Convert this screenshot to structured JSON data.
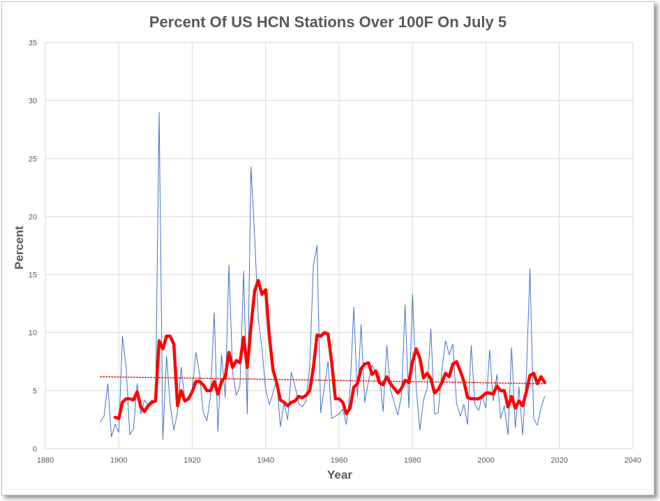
{
  "chart_data": {
    "type": "line",
    "title": "Percent Of US HCN Stations Over 100F On July 5",
    "xlabel": "Year",
    "ylabel": "Percent",
    "xlim": [
      1880,
      2040
    ],
    "ylim": [
      0,
      35
    ],
    "xticks": [
      1880,
      1900,
      1920,
      1940,
      1960,
      1980,
      2000,
      2020,
      2040
    ],
    "yticks": [
      0,
      5,
      10,
      15,
      20,
      25,
      30,
      35
    ],
    "grid": true,
    "legend": "none",
    "series": [
      {
        "role": "annual",
        "color": "#4472c4",
        "x": [
          1895,
          1896,
          1897,
          1898,
          1899,
          1900,
          1901,
          1902,
          1903,
          1904,
          1905,
          1906,
          1907,
          1908,
          1909,
          1910,
          1911,
          1912,
          1913,
          1914,
          1915,
          1916,
          1917,
          1918,
          1919,
          1920,
          1921,
          1922,
          1923,
          1924,
          1925,
          1926,
          1927,
          1928,
          1929,
          1930,
          1931,
          1932,
          1933,
          1934,
          1935,
          1936,
          1937,
          1938,
          1939,
          1940,
          1941,
          1942,
          1943,
          1944,
          1945,
          1946,
          1947,
          1948,
          1949,
          1950,
          1951,
          1952,
          1953,
          1954,
          1955,
          1956,
          1957,
          1958,
          1959,
          1960,
          1961,
          1962,
          1963,
          1964,
          1965,
          1966,
          1967,
          1968,
          1969,
          1970,
          1971,
          1972,
          1973,
          1974,
          1975,
          1976,
          1977,
          1978,
          1979,
          1980,
          1981,
          1982,
          1983,
          1984,
          1985,
          1986,
          1987,
          1988,
          1989,
          1990,
          1991,
          1992,
          1993,
          1994,
          1995,
          1996,
          1997,
          1998,
          1999,
          2000,
          2001,
          2002,
          2003,
          2004,
          2005,
          2006,
          2007,
          2008,
          2009,
          2010,
          2011,
          2012,
          2013,
          2014,
          2015,
          2016
        ],
        "values": [
          2.3,
          2.8,
          5.6,
          1.0,
          2.1,
          1.4,
          9.7,
          7.0,
          1.2,
          1.7,
          5.6,
          3.0,
          4.2,
          3.8,
          4.2,
          4.0,
          29.0,
          0.8,
          8.0,
          3.8,
          1.6,
          3.2,
          7.0,
          4.2,
          4.4,
          5.0,
          8.3,
          6.5,
          3.1,
          2.4,
          4.6,
          11.7,
          1.5,
          8.1,
          4.4,
          15.8,
          6.6,
          4.6,
          5.4,
          15.3,
          3.0,
          24.3,
          18.3,
          11.2,
          8.6,
          5.1,
          3.8,
          4.8,
          6.0,
          1.9,
          3.9,
          2.5,
          6.6,
          5.4,
          3.9,
          3.6,
          4.1,
          7.0,
          15.8,
          17.5,
          3.1,
          5.3,
          7.5,
          2.6,
          2.8,
          3.0,
          3.4,
          2.1,
          5.1,
          12.2,
          4.5,
          10.7,
          4.0,
          5.8,
          7.2,
          6.6,
          6.5,
          3.2,
          8.9,
          5.1,
          4.0,
          2.9,
          4.6,
          12.4,
          3.5,
          13.3,
          5.3,
          1.6,
          4.2,
          5.2,
          10.3,
          3.0,
          3.1,
          6.8,
          9.3,
          8.1,
          9.0,
          3.9,
          2.8,
          3.8,
          2.1,
          8.9,
          3.8,
          3.3,
          4.5,
          3.5,
          8.5,
          4.1,
          6.4,
          2.6,
          3.7,
          1.2,
          8.7,
          1.8,
          5.3,
          1.2,
          6.2,
          15.5,
          2.6,
          2.0,
          3.5,
          4.5
        ]
      },
      {
        "role": "running-mean",
        "color": "#ff0000",
        "x": [
          1899,
          1900,
          1901,
          1902,
          1903,
          1904,
          1905,
          1906,
          1907,
          1908,
          1909,
          1910,
          1911,
          1912,
          1913,
          1914,
          1915,
          1916,
          1917,
          1918,
          1919,
          1920,
          1921,
          1922,
          1923,
          1924,
          1925,
          1926,
          1927,
          1928,
          1929,
          1930,
          1931,
          1932,
          1933,
          1934,
          1935,
          1936,
          1937,
          1938,
          1939,
          1940,
          1941,
          1942,
          1943,
          1944,
          1945,
          1946,
          1947,
          1948,
          1949,
          1950,
          1951,
          1952,
          1953,
          1954,
          1955,
          1956,
          1957,
          1958,
          1959,
          1960,
          1961,
          1962,
          1963,
          1964,
          1965,
          1966,
          1967,
          1968,
          1969,
          1970,
          1971,
          1972,
          1973,
          1974,
          1975,
          1976,
          1977,
          1978,
          1979,
          1980,
          1981,
          1982,
          1983,
          1984,
          1985,
          1986,
          1987,
          1988,
          1989,
          1990,
          1991,
          1992,
          1993,
          1994,
          1995,
          1996,
          1997,
          1998,
          1999,
          2000,
          2001,
          2002,
          2003,
          2004,
          2005,
          2006,
          2007,
          2008,
          2009,
          2010,
          2011,
          2012,
          2013,
          2014,
          2015,
          2016
        ],
        "values": [
          2.7,
          2.6,
          4.0,
          4.3,
          4.3,
          4.2,
          4.9,
          3.6,
          3.2,
          3.7,
          4.0,
          4.1,
          9.3,
          8.6,
          9.7,
          9.7,
          9.0,
          3.7,
          5.0,
          4.1,
          4.3,
          4.9,
          5.8,
          5.8,
          5.5,
          5.0,
          5.0,
          5.8,
          4.7,
          5.8,
          6.2,
          8.3,
          7.0,
          7.6,
          7.4,
          9.6,
          7.0,
          10.5,
          13.6,
          14.5,
          13.3,
          13.7,
          9.7,
          6.8,
          5.7,
          4.2,
          4.0,
          3.7,
          4.0,
          4.1,
          4.5,
          4.4,
          4.6,
          5.0,
          7.0,
          9.8,
          9.7,
          10.0,
          9.9,
          7.4,
          4.3,
          4.3,
          4.0,
          3.0,
          3.5,
          5.3,
          5.6,
          6.9,
          7.3,
          7.4,
          6.4,
          6.7,
          5.7,
          5.5,
          6.2,
          5.6,
          5.2,
          4.8,
          5.2,
          5.9,
          5.7,
          7.5,
          8.6,
          7.8,
          6.1,
          6.5,
          6.0,
          4.8,
          5.1,
          5.7,
          6.5,
          6.2,
          7.3,
          7.5,
          6.7,
          5.8,
          4.4,
          4.3,
          4.3,
          4.3,
          4.5,
          4.8,
          4.8,
          4.7,
          5.4,
          5.0,
          5.0,
          3.6,
          4.5,
          3.5,
          4.1,
          3.7,
          4.9,
          6.3,
          6.5,
          5.6,
          6.2,
          5.7
        ]
      },
      {
        "role": "linear-trend",
        "color": "#e31b1b",
        "x": [
          1895,
          2016
        ],
        "values": [
          6.2,
          5.6
        ]
      }
    ]
  }
}
